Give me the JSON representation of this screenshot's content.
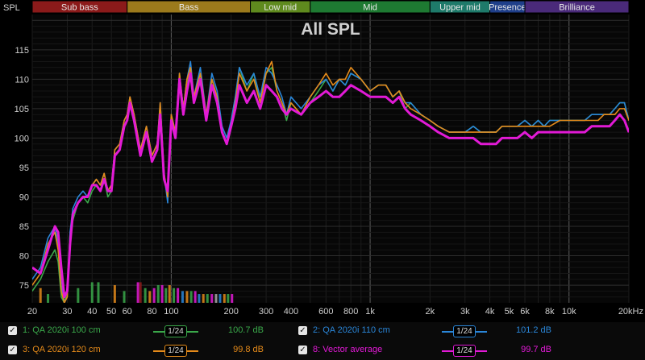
{
  "chart_data": {
    "type": "line",
    "title": "All SPL",
    "ylabel": "SPL",
    "xlabel": "",
    "x_scale": "log",
    "xlim": [
      20,
      20000
    ],
    "ylim": [
      72,
      121
    ],
    "grid": true,
    "x_tick_labels": [
      "20",
      "30",
      "40",
      "50",
      "60",
      "80",
      "100",
      "200",
      "300",
      "400",
      "600",
      "800",
      "1k",
      "2k",
      "3k",
      "4k",
      "5k",
      "6k",
      "8k",
      "10k",
      "20kHz"
    ],
    "y_tick_labels": [
      "115",
      "110",
      "105",
      "100",
      "95",
      "90",
      "85",
      "80",
      "75"
    ],
    "bands": [
      {
        "name": "Sub bass",
        "from": 20,
        "to": 60,
        "color": "#8b1a1a"
      },
      {
        "name": "Bass",
        "from": 60,
        "to": 250,
        "color": "#9c7a1c"
      },
      {
        "name": "Low mid",
        "from": 250,
        "to": 500,
        "color": "#5f8a1e"
      },
      {
        "name": "Mid",
        "from": 500,
        "to": 2000,
        "color": "#1e7a32"
      },
      {
        "name": "Upper mid",
        "from": 2000,
        "to": 4000,
        "color": "#1e7a6a"
      },
      {
        "name": "Presence",
        "from": 4000,
        "to": 6000,
        "color": "#1f3f8a"
      },
      {
        "name": "Brilliance",
        "from": 6000,
        "to": 20000,
        "color": "#4a2a7a"
      }
    ],
    "series": [
      {
        "name": "1: QA 2020i 100 cm",
        "color": "#3aa84a",
        "width": 1.6,
        "x": [
          20,
          22,
          24,
          26,
          27,
          28,
          29,
          30,
          31,
          32,
          34,
          36,
          38,
          40,
          42,
          44,
          46,
          48,
          50,
          52,
          55,
          58,
          60,
          62,
          65,
          70,
          75,
          80,
          85,
          88,
          92,
          96,
          100,
          105,
          110,
          115,
          120,
          125,
          130,
          140,
          150,
          160,
          170,
          180,
          190,
          200,
          210,
          220,
          240,
          260,
          280,
          300,
          320,
          340,
          360,
          380,
          400,
          450,
          500,
          550,
          600,
          650,
          700,
          750,
          800,
          900,
          1000,
          1100,
          1200,
          1300,
          1400,
          1500,
          1600,
          1800,
          2000,
          2200,
          2500,
          2800,
          3000,
          3300,
          3600,
          4000,
          4300,
          4600,
          5000,
          5500,
          6000,
          6500,
          7000,
          7500,
          8000,
          9000,
          10000,
          11000,
          12000,
          13000,
          14000,
          15000,
          16000,
          17000,
          18000,
          19000,
          20000
        ],
        "y": [
          74,
          76,
          79,
          81,
          79,
          73,
          72,
          74,
          84,
          86,
          89,
          90,
          89,
          91,
          92,
          91,
          93,
          90,
          91,
          97,
          98,
          102,
          103,
          106,
          103,
          97,
          101,
          96,
          98,
          105,
          93,
          90,
          103,
          100,
          110,
          104,
          109,
          112,
          106,
          111,
          103,
          110,
          107,
          101,
          99,
          102,
          106,
          112,
          108,
          111,
          106,
          111,
          112,
          108,
          106,
          103,
          106,
          104,
          106,
          108,
          110,
          108,
          110,
          109,
          111,
          110,
          108,
          109,
          109,
          107,
          108,
          105,
          106,
          104,
          103,
          102,
          101,
          101,
          101,
          102,
          101,
          101,
          101,
          102,
          102,
          102,
          103,
          102,
          103,
          102,
          103,
          103,
          103,
          103,
          103,
          104,
          104,
          104,
          104,
          105,
          106,
          106,
          103
        ]
      },
      {
        "name": "2: QA 2020i 110 cm",
        "color": "#2a86d8",
        "width": 1.6,
        "x": [
          20,
          22,
          24,
          26,
          27,
          28,
          29,
          30,
          31,
          32,
          34,
          36,
          38,
          40,
          42,
          44,
          46,
          48,
          50,
          52,
          55,
          58,
          60,
          62,
          65,
          70,
          75,
          80,
          85,
          88,
          92,
          96,
          100,
          105,
          110,
          115,
          120,
          125,
          130,
          140,
          150,
          160,
          170,
          180,
          190,
          200,
          210,
          220,
          240,
          260,
          280,
          300,
          320,
          340,
          360,
          380,
          400,
          450,
          500,
          550,
          600,
          650,
          700,
          750,
          800,
          900,
          1000,
          1100,
          1200,
          1300,
          1400,
          1500,
          1600,
          1800,
          2000,
          2200,
          2500,
          2800,
          3000,
          3300,
          3600,
          4000,
          4300,
          4600,
          5000,
          5500,
          6000,
          6500,
          7000,
          7500,
          8000,
          9000,
          10000,
          11000,
          12000,
          13000,
          14000,
          15000,
          16000,
          17000,
          18000,
          19000,
          20000
        ],
        "y": [
          76,
          78,
          83,
          85,
          82,
          75,
          72,
          73,
          84,
          88,
          90,
          91,
          90,
          92,
          93,
          92,
          94,
          91,
          92,
          98,
          99,
          103,
          104,
          107,
          104,
          98,
          102,
          97,
          99,
          106,
          94,
          89,
          104,
          101,
          111,
          105,
          110,
          113,
          107,
          112,
          104,
          111,
          108,
          102,
          100,
          103,
          107,
          112,
          109,
          111,
          107,
          112,
          111,
          109,
          107,
          104,
          107,
          105,
          107,
          109,
          110,
          108,
          110,
          109,
          111,
          110,
          108,
          109,
          109,
          107,
          108,
          106,
          106,
          104,
          103,
          102,
          101,
          101,
          101,
          102,
          101,
          101,
          101,
          102,
          102,
          102,
          103,
          102,
          103,
          102,
          103,
          103,
          103,
          103,
          103,
          104,
          104,
          104,
          104,
          105,
          106,
          106,
          103
        ]
      },
      {
        "name": "3: QA 2020i 120 cm",
        "color": "#e48a1a",
        "width": 1.6,
        "x": [
          20,
          22,
          24,
          26,
          27,
          28,
          29,
          30,
          31,
          32,
          34,
          36,
          38,
          40,
          42,
          44,
          46,
          48,
          50,
          52,
          55,
          58,
          60,
          62,
          65,
          70,
          75,
          80,
          85,
          88,
          92,
          96,
          100,
          105,
          110,
          115,
          120,
          125,
          130,
          140,
          150,
          160,
          170,
          180,
          190,
          200,
          210,
          220,
          240,
          260,
          280,
          300,
          320,
          340,
          360,
          380,
          400,
          450,
          500,
          550,
          600,
          650,
          700,
          750,
          800,
          900,
          1000,
          1100,
          1200,
          1300,
          1400,
          1500,
          1600,
          1800,
          2000,
          2200,
          2500,
          2800,
          3000,
          3300,
          3600,
          4000,
          4300,
          4600,
          5000,
          5500,
          6000,
          6500,
          7000,
          7500,
          8000,
          9000,
          10000,
          11000,
          12000,
          13000,
          14000,
          15000,
          16000,
          17000,
          18000,
          19000,
          20000
        ],
        "y": [
          75,
          77,
          82,
          84,
          81,
          74,
          72,
          73,
          83,
          87,
          89,
          90,
          90,
          92,
          93,
          92,
          94,
          91,
          92,
          98,
          99,
          103,
          104,
          107,
          104,
          98,
          102,
          97,
          99,
          106,
          94,
          90,
          104,
          101,
          111,
          105,
          110,
          112,
          107,
          111,
          104,
          110,
          107,
          101,
          99,
          102,
          106,
          111,
          108,
          110,
          106,
          111,
          113,
          108,
          106,
          104,
          106,
          104,
          107,
          109,
          111,
          109,
          110,
          110,
          112,
          110,
          108,
          109,
          109,
          107,
          108,
          106,
          105,
          104,
          103,
          102,
          101,
          101,
          101,
          101,
          101,
          101,
          101,
          102,
          102,
          102,
          102,
          102,
          102,
          102,
          102,
          103,
          103,
          103,
          103,
          103,
          103,
          104,
          104,
          104,
          105,
          105,
          103
        ]
      },
      {
        "name": "8: Vector average",
        "color": "#e21ad6",
        "width": 3,
        "x": [
          20,
          22,
          24,
          26,
          27,
          28,
          29,
          30,
          31,
          32,
          34,
          36,
          38,
          40,
          42,
          44,
          46,
          48,
          50,
          52,
          55,
          58,
          60,
          62,
          65,
          70,
          75,
          80,
          85,
          88,
          92,
          96,
          100,
          105,
          110,
          115,
          120,
          125,
          130,
          140,
          150,
          160,
          170,
          180,
          190,
          200,
          210,
          220,
          240,
          260,
          280,
          300,
          320,
          340,
          360,
          380,
          400,
          450,
          500,
          550,
          600,
          650,
          700,
          750,
          800,
          900,
          1000,
          1100,
          1200,
          1300,
          1400,
          1500,
          1600,
          1800,
          2000,
          2200,
          2500,
          2800,
          3000,
          3300,
          3600,
          4000,
          4300,
          4600,
          5000,
          5500,
          6000,
          6500,
          7000,
          7500,
          8000,
          9000,
          10000,
          11000,
          12000,
          13000,
          14000,
          15000,
          16000,
          17000,
          18000,
          19000,
          20000
        ],
        "y": [
          78,
          77,
          81,
          85,
          84,
          78,
          73,
          74,
          82,
          87,
          89,
          90,
          90,
          92,
          92,
          91,
          93,
          91,
          91,
          97,
          98,
          102,
          103,
          106,
          103,
          97,
          101,
          96,
          98,
          104,
          93,
          91,
          103,
          100,
          110,
          104,
          108,
          111,
          106,
          110,
          103,
          109,
          106,
          101,
          99,
          102,
          105,
          109,
          106,
          108,
          105,
          109,
          108,
          107,
          105,
          104,
          105,
          104,
          106,
          107,
          108,
          107,
          107,
          108,
          109,
          108,
          107,
          107,
          107,
          106,
          107,
          105,
          104,
          103,
          102,
          101,
          100,
          100,
          100,
          100,
          99,
          99,
          99,
          100,
          100,
          100,
          101,
          100,
          101,
          101,
          101,
          101,
          101,
          101,
          101,
          102,
          102,
          102,
          102,
          103,
          104,
          103,
          101
        ]
      }
    ],
    "bottom_bars": {
      "note": "small colored bars at the bottom of the plot",
      "items": [
        {
          "x": 22,
          "h": 74.5,
          "color": "#e48a1a"
        },
        {
          "x": 24,
          "h": 73.5,
          "color": "#3aa84a"
        },
        {
          "x": 34,
          "h": 74.5,
          "color": "#3aa84a"
        },
        {
          "x": 40,
          "h": 75.5,
          "color": "#3aa84a"
        },
        {
          "x": 43,
          "h": 75.5,
          "color": "#3aa84a"
        },
        {
          "x": 52,
          "h": 75,
          "color": "#e48a1a"
        },
        {
          "x": 58,
          "h": 74,
          "color": "#3aa84a"
        },
        {
          "x": 68,
          "h": 75.5,
          "color": "#e21ad6"
        },
        {
          "x": 70,
          "h": 75.5,
          "color": "#8b1a1a"
        },
        {
          "x": 74,
          "h": 74.5,
          "color": "#3aa84a"
        },
        {
          "x": 78,
          "h": 74,
          "color": "#e48a1a"
        },
        {
          "x": 82,
          "h": 74.5,
          "color": "#e21ad6"
        },
        {
          "x": 86,
          "h": 75,
          "color": "#3aa84a"
        },
        {
          "x": 90,
          "h": 75,
          "color": "#e21ad6"
        },
        {
          "x": 94,
          "h": 74.5,
          "color": "#3aa84a"
        },
        {
          "x": 98,
          "h": 75,
          "color": "#e48a1a"
        },
        {
          "x": 103,
          "h": 74.5,
          "color": "#3aa84a"
        },
        {
          "x": 108,
          "h": 74.5,
          "color": "#e21ad6"
        },
        {
          "x": 114,
          "h": 74,
          "color": "#2a86d8"
        },
        {
          "x": 120,
          "h": 74,
          "color": "#e48a1a"
        },
        {
          "x": 126,
          "h": 74,
          "color": "#3aa84a"
        },
        {
          "x": 132,
          "h": 74,
          "color": "#e21ad6"
        },
        {
          "x": 138,
          "h": 73.5,
          "color": "#2a86d8"
        },
        {
          "x": 145,
          "h": 73.5,
          "color": "#e48a1a"
        },
        {
          "x": 152,
          "h": 73.5,
          "color": "#3aa84a"
        },
        {
          "x": 160,
          "h": 73.5,
          "color": "#e21ad6"
        },
        {
          "x": 168,
          "h": 73.5,
          "color": "#aaaaaa"
        },
        {
          "x": 176,
          "h": 73.5,
          "color": "#2a86d8"
        },
        {
          "x": 185,
          "h": 73.5,
          "color": "#e48a1a"
        },
        {
          "x": 193,
          "h": 73.5,
          "color": "#3aa84a"
        },
        {
          "x": 202,
          "h": 73.5,
          "color": "#e21ad6"
        }
      ]
    }
  },
  "legend": [
    {
      "check": "✓",
      "name": "1: QA 2020i 100 cm",
      "smoothing": "1/24",
      "value": "100.7 dB",
      "color": "#3aa84a"
    },
    {
      "check": "✓",
      "name": "2: QA 2020i 110 cm",
      "smoothing": "1/24",
      "value": "101.2 dB",
      "color": "#2a86d8"
    },
    {
      "check": "✓",
      "name": "3: QA 2020i 120 cm",
      "smoothing": "1/24",
      "value": "99.8 dB",
      "color": "#e48a1a"
    },
    {
      "check": "✓",
      "name": "8: Vector average",
      "smoothing": "1/24",
      "value": "99.7 dB",
      "color": "#e21ad6"
    }
  ]
}
